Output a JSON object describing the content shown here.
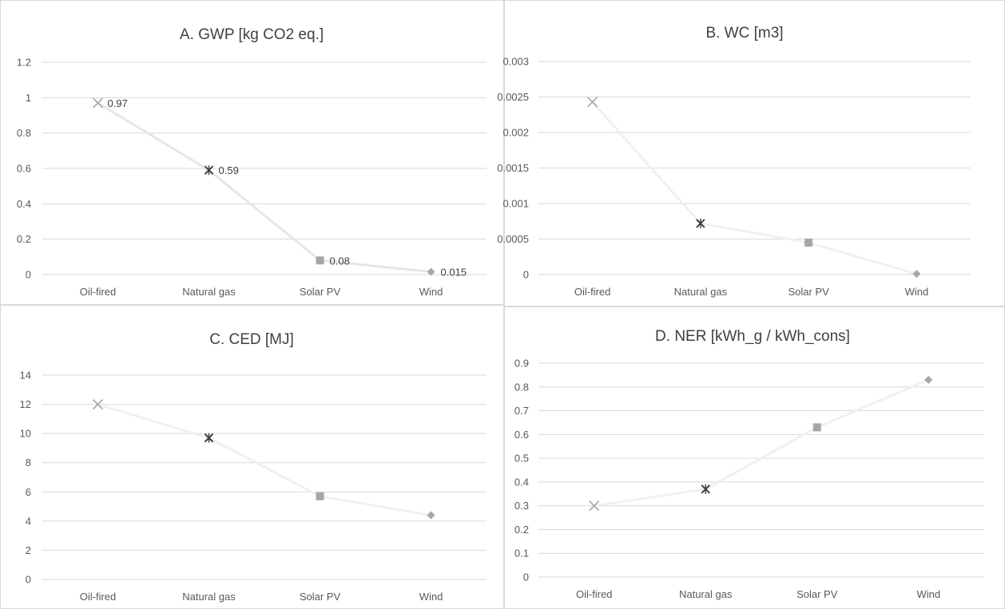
{
  "chart_data": [
    {
      "type": "line",
      "title": "A. GWP [kg CO2 eq.]",
      "categories": [
        "Oil-fired",
        "Natural gas",
        "Solar PV",
        "Wind"
      ],
      "values": [
        0.97,
        0.59,
        0.08,
        0.015
      ],
      "data_labels": [
        "0.97",
        "0.59",
        "0.08",
        "0.015"
      ],
      "ylim": [
        0,
        1.2
      ],
      "yticks": [
        "0",
        "0.2",
        "0.4",
        "0.6",
        "0.8",
        "1",
        "1.2"
      ],
      "markers": [
        "x",
        "star",
        "square",
        "diamond"
      ],
      "grid": true,
      "line_color": "#e6e6e6",
      "marker_colors": [
        "#a6a6a6",
        "#404040",
        "#a6a6a6",
        "#a6a6a6"
      ]
    },
    {
      "type": "line",
      "title": "B. WC [m3]",
      "categories": [
        "Oil-fired",
        "Natural gas",
        "Solar PV",
        "Wind"
      ],
      "values": [
        0.00243,
        0.00072,
        0.00045,
        1e-05
      ],
      "data_labels": [],
      "ylim": [
        0,
        0.003
      ],
      "yticks": [
        "0",
        "0.0005",
        "0.001",
        "0.0015",
        "0.002",
        "0.0025",
        "0.003"
      ],
      "markers": [
        "x",
        "star",
        "square",
        "diamond"
      ],
      "grid": true,
      "line_color": "#f0f0f0",
      "marker_colors": [
        "#a6a6a6",
        "#404040",
        "#a6a6a6",
        "#a6a6a6"
      ]
    },
    {
      "type": "line",
      "title": "C. CED [MJ]",
      "categories": [
        "Oil-fired",
        "Natural gas",
        "Solar PV",
        "Wind"
      ],
      "values": [
        12,
        9.7,
        5.7,
        4.4
      ],
      "data_labels": [],
      "ylim": [
        0,
        14
      ],
      "yticks": [
        "0",
        "2",
        "4",
        "6",
        "8",
        "10",
        "12",
        "14"
      ],
      "markers": [
        "x",
        "star",
        "square",
        "diamond"
      ],
      "grid": true,
      "line_color": "#f0f0f0",
      "marker_colors": [
        "#a6a6a6",
        "#404040",
        "#a6a6a6",
        "#a6a6a6"
      ]
    },
    {
      "type": "line",
      "title": "D. NER [kWh_g / kWh_cons]",
      "categories": [
        "Oil-fired",
        "Natural gas",
        "Solar PV",
        "Wind"
      ],
      "values": [
        0.3,
        0.37,
        0.63,
        0.83
      ],
      "data_labels": [],
      "ylim": [
        0,
        0.9
      ],
      "yticks": [
        "0",
        "0.1",
        "0.2",
        "0.3",
        "0.4",
        "0.5",
        "0.6",
        "0.7",
        "0.8",
        "0.9"
      ],
      "markers": [
        "x",
        "star",
        "square",
        "diamond"
      ],
      "grid": true,
      "line_color": "#f0f0f0",
      "marker_colors": [
        "#a6a6a6",
        "#404040",
        "#a6a6a6",
        "#a6a6a6"
      ]
    }
  ]
}
